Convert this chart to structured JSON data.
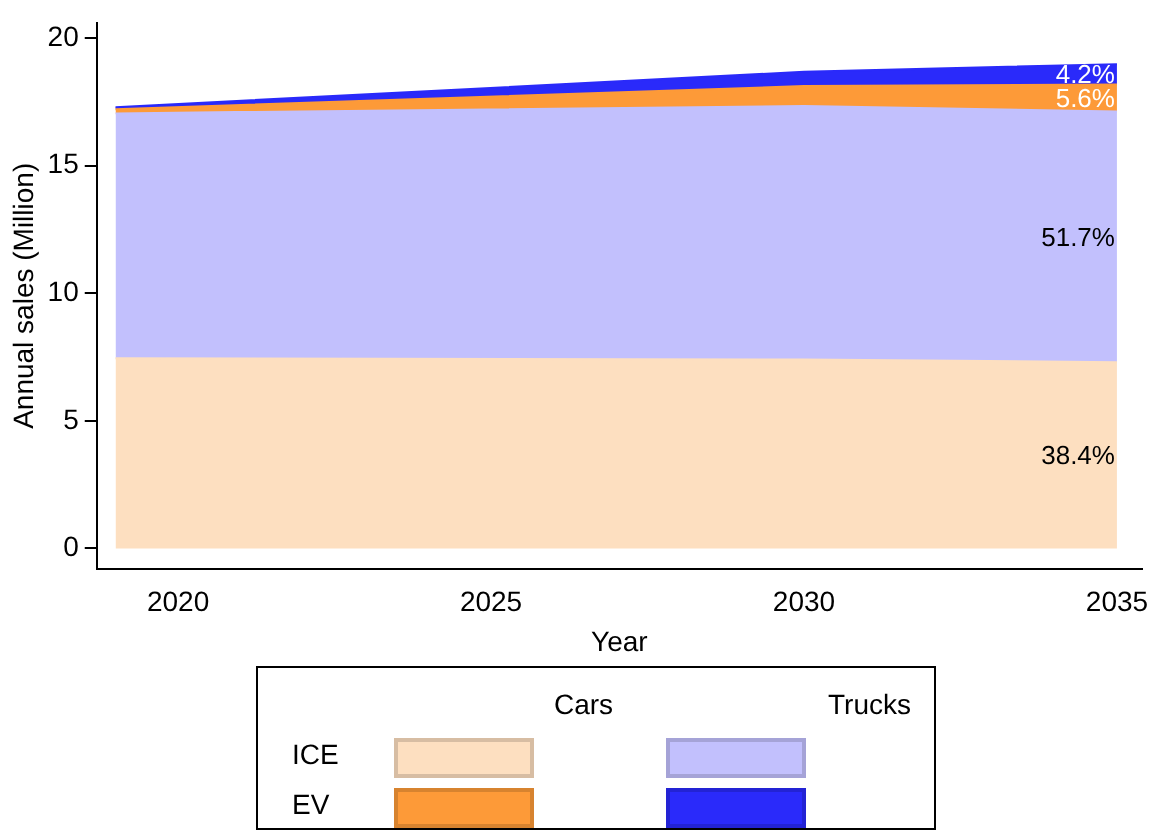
{
  "chart_data": {
    "type": "area",
    "xlabel": "Year",
    "ylabel": "Annual sales (Million)",
    "x": [
      2019,
      2030,
      2035
    ],
    "stacked": true,
    "series": [
      {
        "color": "#fddfc0",
        "values": [
          7.45,
          7.4,
          7.3
        ]
      },
      {
        "color": "#c2c0fd",
        "values": [
          9.6,
          9.94,
          9.82
        ]
      },
      {
        "color": "#fd9a38",
        "values": [
          0.16,
          0.78,
          1.06
        ]
      },
      {
        "color": "#2a2afa",
        "values": [
          0.08,
          0.56,
          0.8
        ]
      }
    ],
    "annotations": [
      "Cars",
      "Trucks",
      "ICE",
      "EV",
      "38.4%",
      "51.7%",
      "5.6%",
      "4.2%"
    ],
    "xlim": [
      2018.7,
      2035.4
    ],
    "ylim": [
      -0.8,
      20.6
    ],
    "xticks": [
      2020,
      2025,
      2030,
      2035
    ],
    "yticks": [
      0,
      5,
      10,
      15,
      20
    ],
    "grid": false
  }
}
